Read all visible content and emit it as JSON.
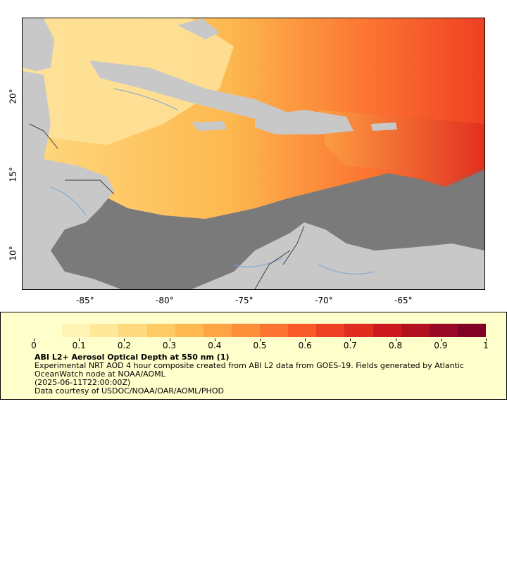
{
  "map": {
    "lon_ticks": [
      "-85°",
      "-80°",
      "-75°",
      "-70°",
      "-65°"
    ],
    "lat_ticks": [
      "20°",
      "15°",
      "10°"
    ],
    "colors": {
      "ocean_nodata": "#7a7a7a",
      "land": "#c8c8c8",
      "rivers": "#7aa7d8",
      "borders": "#404040"
    }
  },
  "legend": {
    "ticks": [
      "0",
      "0.1",
      "0.2",
      "0.3",
      "0.4",
      "0.5",
      "0.6",
      "0.7",
      "0.8",
      "0.9",
      "1"
    ],
    "title": "ABI L2+ Aerosol Optical Depth at 550 nm (1)",
    "description": "Experimental NRT AOD 4 hour composite created from ABI L2 data from GOES-19. Fields generated by Atlantic OceanWatch node at NOAA/AOML",
    "time": "(2025-06-11T22:00:00Z)",
    "credit": "Data courtesy of USDOC/NOAA/OAR/AOML/PHOD",
    "colors": [
      "#ffffcc",
      "#fff4b3",
      "#ffe899",
      "#fed980",
      "#feca66",
      "#fdb84f",
      "#fda444",
      "#fd8f3a",
      "#fc7431",
      "#f75929",
      "#ee4023",
      "#e02d1f",
      "#cc1a1f",
      "#b3101f",
      "#980826",
      "#800026"
    ]
  }
}
